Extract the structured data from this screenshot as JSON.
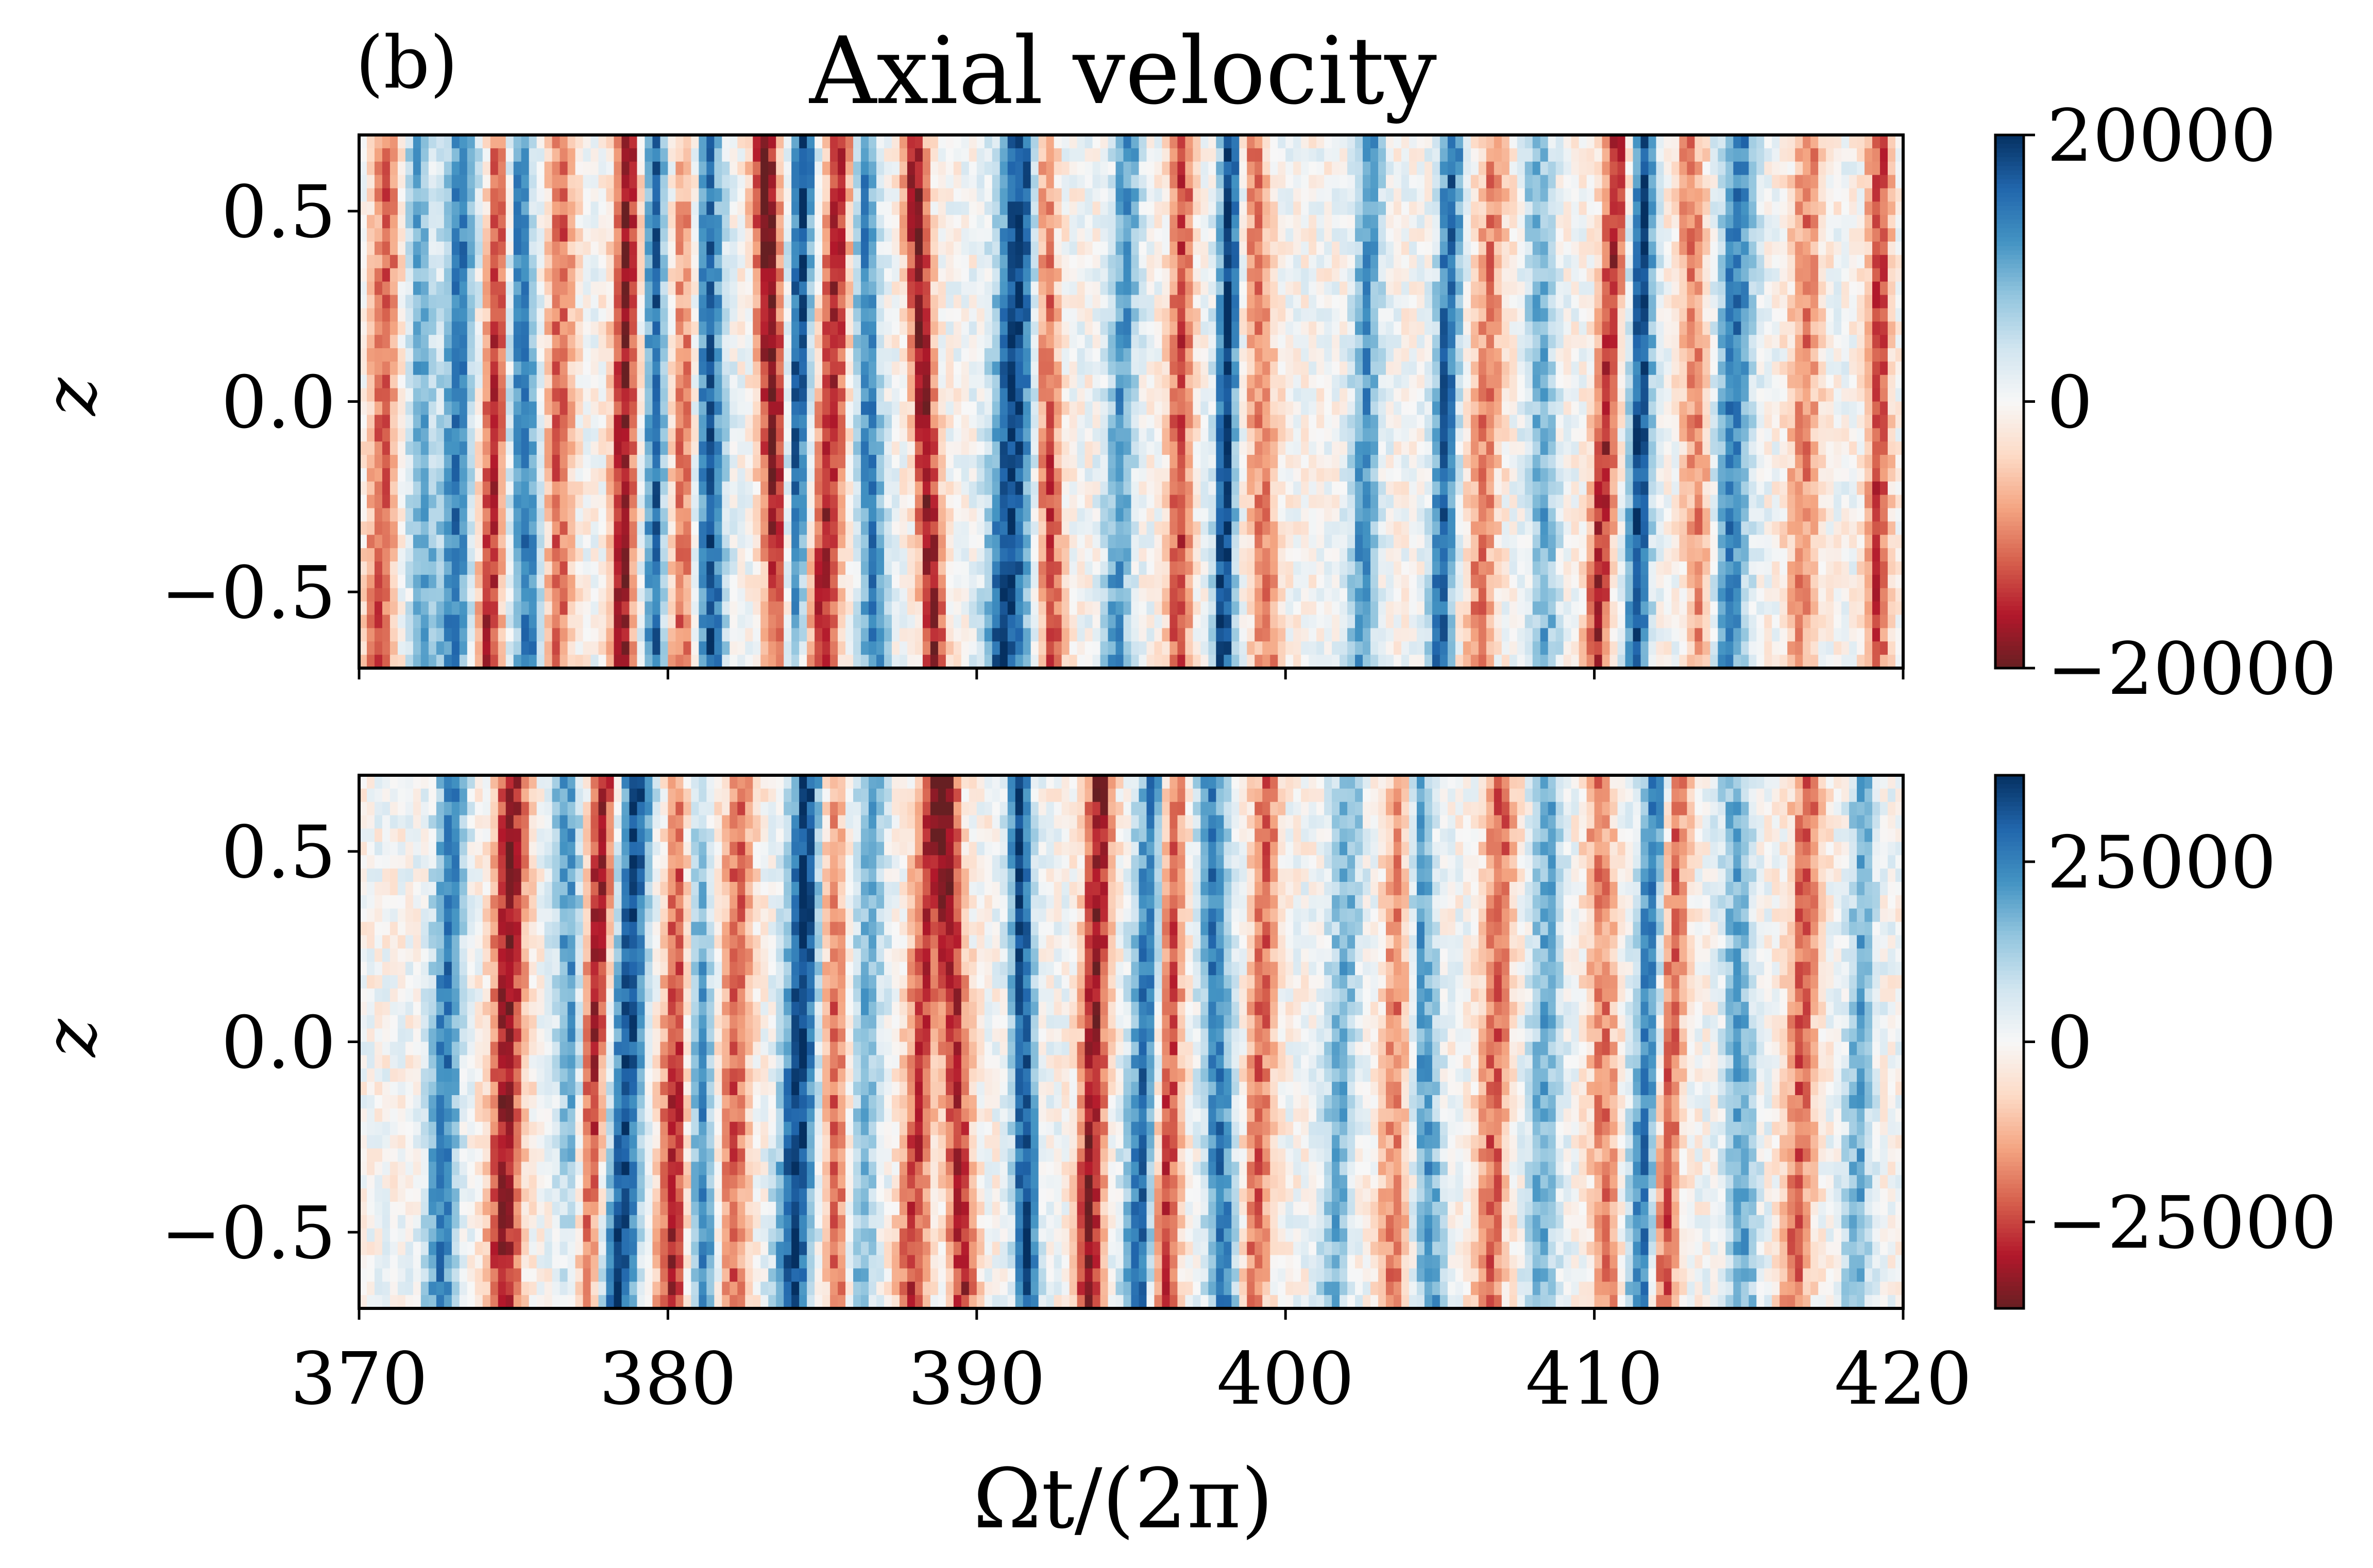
{
  "panel_label": "(b)",
  "title": "Axial velocity",
  "chart_data": [
    {
      "type": "heatmap",
      "title": "Axial velocity",
      "xlabel": "Ωt/(2π)",
      "ylabel": "z",
      "xlim": [
        370,
        420
      ],
      "ylim": [
        -0.7,
        0.7
      ],
      "xticks": [
        370,
        380,
        390,
        400,
        410,
        420
      ],
      "xtick_labels": [],
      "yticks": [
        0.5,
        0.0,
        -0.5
      ],
      "ytick_labels": [
        "0.5",
        "0.0",
        "−0.5"
      ],
      "colormap": "RdBu",
      "clim": [
        -20000,
        20000
      ],
      "colorbar_ticks": [
        20000,
        0,
        -20000
      ],
      "colorbar_labels": [
        "20000",
        "0",
        "−20000"
      ],
      "bands": [
        {
          "t": 370.8,
          "w": 0.5,
          "a": -0.6,
          "tilt": 0.25
        },
        {
          "t": 372.0,
          "w": 0.45,
          "a": 0.5,
          "tilt": -0.2
        },
        {
          "t": 373.2,
          "w": 0.5,
          "a": 0.7,
          "tilt": 0.2
        },
        {
          "t": 374.4,
          "w": 0.4,
          "a": -0.8,
          "tilt": 0.3
        },
        {
          "t": 375.3,
          "w": 0.5,
          "a": 0.7,
          "tilt": -0.3
        },
        {
          "t": 376.5,
          "w": 0.45,
          "a": -0.6,
          "tilt": 0.1
        },
        {
          "t": 378.6,
          "w": 0.4,
          "a": -0.9,
          "tilt": 0.15
        },
        {
          "t": 379.6,
          "w": 0.35,
          "a": 0.8,
          "tilt": 0.0
        },
        {
          "t": 380.6,
          "w": 0.5,
          "a": -0.6,
          "tilt": 0.2
        },
        {
          "t": 381.3,
          "w": 0.5,
          "a": 0.9,
          "tilt": -0.1
        },
        {
          "t": 383.4,
          "w": 0.45,
          "a": -1.0,
          "tilt": -0.4
        },
        {
          "t": 384.2,
          "w": 0.4,
          "a": 0.9,
          "tilt": 0.3
        },
        {
          "t": 385.3,
          "w": 0.5,
          "a": -0.8,
          "tilt": 0.5
        },
        {
          "t": 386.5,
          "w": 0.45,
          "a": 0.7,
          "tilt": -0.3
        },
        {
          "t": 388.3,
          "w": 0.4,
          "a": -0.9,
          "tilt": -0.5
        },
        {
          "t": 391.2,
          "w": 0.7,
          "a": 0.95,
          "tilt": 0.4
        },
        {
          "t": 392.3,
          "w": 0.4,
          "a": -0.7,
          "tilt": -0.2
        },
        {
          "t": 394.7,
          "w": 0.45,
          "a": 0.6,
          "tilt": 0.3
        },
        {
          "t": 396.6,
          "w": 0.4,
          "a": -0.7,
          "tilt": 0.1
        },
        {
          "t": 398.1,
          "w": 0.35,
          "a": 1.0,
          "tilt": 0.2
        },
        {
          "t": 399.2,
          "w": 0.5,
          "a": -0.5,
          "tilt": -0.3
        },
        {
          "t": 402.6,
          "w": 0.45,
          "a": 0.6,
          "tilt": 0.2
        },
        {
          "t": 405.2,
          "w": 0.4,
          "a": 0.8,
          "tilt": 0.3
        },
        {
          "t": 406.5,
          "w": 0.5,
          "a": -0.5,
          "tilt": 0.4
        },
        {
          "t": 408.3,
          "w": 0.45,
          "a": 0.5,
          "tilt": -0.2
        },
        {
          "t": 410.4,
          "w": 0.4,
          "a": -0.8,
          "tilt": 0.5
        },
        {
          "t": 411.5,
          "w": 0.4,
          "a": 0.9,
          "tilt": 0.2
        },
        {
          "t": 413.3,
          "w": 0.5,
          "a": -0.5,
          "tilt": -0.3
        },
        {
          "t": 414.5,
          "w": 0.6,
          "a": 0.7,
          "tilt": 0.3
        },
        {
          "t": 416.8,
          "w": 0.5,
          "a": -0.5,
          "tilt": 0.2
        },
        {
          "t": 419.2,
          "w": 0.4,
          "a": -0.7,
          "tilt": 0.1
        }
      ]
    },
    {
      "type": "heatmap",
      "title": "",
      "xlabel": "Ωt/(2π)",
      "ylabel": "z",
      "xlim": [
        370,
        420
      ],
      "ylim": [
        -0.7,
        0.7
      ],
      "xticks": [
        370,
        380,
        390,
        400,
        410,
        420
      ],
      "xtick_labels": [
        "370",
        "380",
        "390",
        "400",
        "410",
        "420"
      ],
      "yticks": [
        0.5,
        0.0,
        -0.5
      ],
      "ytick_labels": [
        "0.5",
        "0.0",
        "−0.5"
      ],
      "colormap": "RdBu",
      "clim": [
        -37000,
        37000
      ],
      "colorbar_ticks": [
        25000,
        0,
        -25000
      ],
      "colorbar_labels": [
        "25000",
        "0",
        "−25000"
      ],
      "bands": [
        {
          "t": 372.8,
          "w": 0.5,
          "a": 0.7,
          "tilt": 0.3
        },
        {
          "t": 374.8,
          "w": 0.55,
          "a": -0.9,
          "tilt": 0.2
        },
        {
          "t": 376.9,
          "w": 0.5,
          "a": 0.6,
          "tilt": -0.3
        },
        {
          "t": 377.6,
          "w": 0.45,
          "a": -0.9,
          "tilt": 0.5
        },
        {
          "t": 378.7,
          "w": 0.55,
          "a": 0.9,
          "tilt": 0.4
        },
        {
          "t": 380.3,
          "w": 0.5,
          "a": -0.8,
          "tilt": 0.3
        },
        {
          "t": 381.0,
          "w": 0.45,
          "a": 0.7,
          "tilt": -0.3
        },
        {
          "t": 382.2,
          "w": 0.5,
          "a": -0.6,
          "tilt": 0.2
        },
        {
          "t": 384.3,
          "w": 0.6,
          "a": 0.95,
          "tilt": 0.4
        },
        {
          "t": 385.4,
          "w": 0.45,
          "a": -0.6,
          "tilt": -0.2
        },
        {
          "t": 386.4,
          "w": 0.5,
          "a": 0.5,
          "tilt": 0.3
        },
        {
          "t": 388.2,
          "w": 0.5,
          "a": -0.7,
          "tilt": 0.5
        },
        {
          "t": 389.3,
          "w": 0.45,
          "a": -0.8,
          "tilt": -0.4
        },
        {
          "t": 391.5,
          "w": 0.4,
          "a": 0.9,
          "tilt": -0.2
        },
        {
          "t": 393.8,
          "w": 0.45,
          "a": -0.9,
          "tilt": 0.3
        },
        {
          "t": 395.5,
          "w": 0.55,
          "a": 0.8,
          "tilt": 0.4
        },
        {
          "t": 396.2,
          "w": 0.45,
          "a": -0.8,
          "tilt": 0.2
        },
        {
          "t": 397.8,
          "w": 0.5,
          "a": 0.7,
          "tilt": -0.3
        },
        {
          "t": 399.2,
          "w": 0.45,
          "a": -0.6,
          "tilt": 0.3
        },
        {
          "t": 401.8,
          "w": 0.5,
          "a": 0.5,
          "tilt": 0.4
        },
        {
          "t": 403.6,
          "w": 0.5,
          "a": -0.5,
          "tilt": 0.2
        },
        {
          "t": 404.5,
          "w": 0.45,
          "a": 0.6,
          "tilt": -0.3
        },
        {
          "t": 406.8,
          "w": 0.5,
          "a": -0.6,
          "tilt": 0.3
        },
        {
          "t": 408.4,
          "w": 0.5,
          "a": 0.5,
          "tilt": 0.2
        },
        {
          "t": 410.3,
          "w": 0.5,
          "a": -0.5,
          "tilt": -0.2
        },
        {
          "t": 411.8,
          "w": 0.55,
          "a": 0.8,
          "tilt": 0.4
        },
        {
          "t": 412.4,
          "w": 0.45,
          "a": -0.8,
          "tilt": 0.3
        },
        {
          "t": 414.7,
          "w": 0.5,
          "a": 0.5,
          "tilt": -0.2
        },
        {
          "t": 416.7,
          "w": 0.5,
          "a": -0.6,
          "tilt": 0.3
        },
        {
          "t": 418.6,
          "w": 0.45,
          "a": 0.5,
          "tilt": 0.2
        }
      ]
    }
  ]
}
